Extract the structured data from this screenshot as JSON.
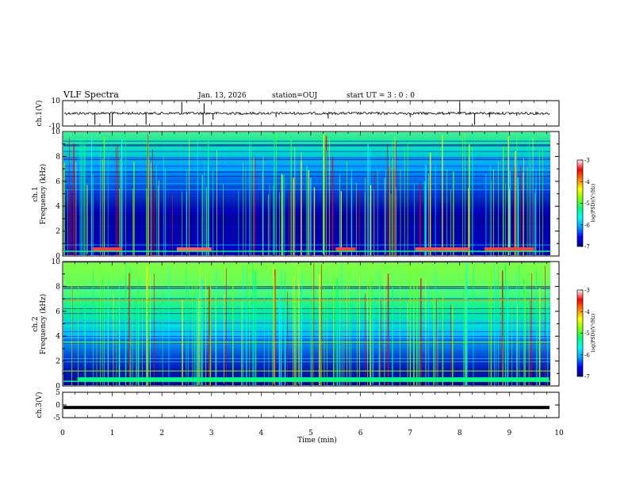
{
  "header": {
    "title": "VLF Spectra",
    "date": "Jan. 13, 2026",
    "station": "station=OUJ",
    "start_ut": "start UT =  3 : 0  : 0"
  },
  "colors": {
    "axis": "#000000",
    "colormap": [
      "#000080",
      "#0000ff",
      "#00a0ff",
      "#00ffff",
      "#00ff80",
      "#80ff00",
      "#ffff00",
      "#ff8000",
      "#ff0000",
      "#ffffff"
    ]
  },
  "chart_data": [
    {
      "type": "line",
      "name": "ch1-waveform",
      "ylabel": "ch.1(V)",
      "ylim": [
        -10,
        10
      ],
      "y_tick_labels": [
        "10",
        "-10"
      ],
      "baseline_value": 0,
      "xlim": [
        0,
        10
      ]
    },
    {
      "type": "heatmap",
      "name": "ch1-spectrogram",
      "ylabel_line1": "ch.1",
      "ylabel_line2": "Frequency (kHz)",
      "ylim_khz": [
        0,
        10
      ],
      "y_tick_labels": [
        "0",
        "2",
        "4",
        "6",
        "8",
        "10"
      ],
      "xlim": [
        0,
        10
      ],
      "colorbar": {
        "label": "log(PSD)(V²/Hz)",
        "range": [
          -7,
          -3
        ],
        "tick_labels": [
          "-3",
          "-4",
          "-5",
          "-6",
          "-7"
        ]
      }
    },
    {
      "type": "heatmap",
      "name": "ch2-spectrogram",
      "ylabel_line1": "ch.2",
      "ylabel_line2": "Frequency (kHz)",
      "ylim_khz": [
        0,
        10
      ],
      "y_tick_labels": [
        "0",
        "2",
        "4",
        "6",
        "8",
        "10"
      ],
      "xlim": [
        0,
        10
      ],
      "colorbar": {
        "label": "log(PSD)(V²/Hz)",
        "range": [
          -7,
          -3
        ],
        "tick_labels": [
          "-3",
          "-4",
          "-5",
          "-6",
          "-7"
        ]
      }
    },
    {
      "type": "line",
      "name": "ch3-waveform",
      "ylabel": "ch.3(V)",
      "ylim": [
        -5,
        5
      ],
      "y_tick_labels": [
        "5",
        "0",
        "-5"
      ],
      "baseline_value": -1,
      "xlim": [
        0,
        10
      ]
    }
  ],
  "x_axis": {
    "label": "Time (min)",
    "range": [
      0,
      10
    ],
    "tick_labels": [
      "0",
      "1",
      "2",
      "3",
      "4",
      "5",
      "6",
      "7",
      "8",
      "9",
      "10"
    ]
  }
}
